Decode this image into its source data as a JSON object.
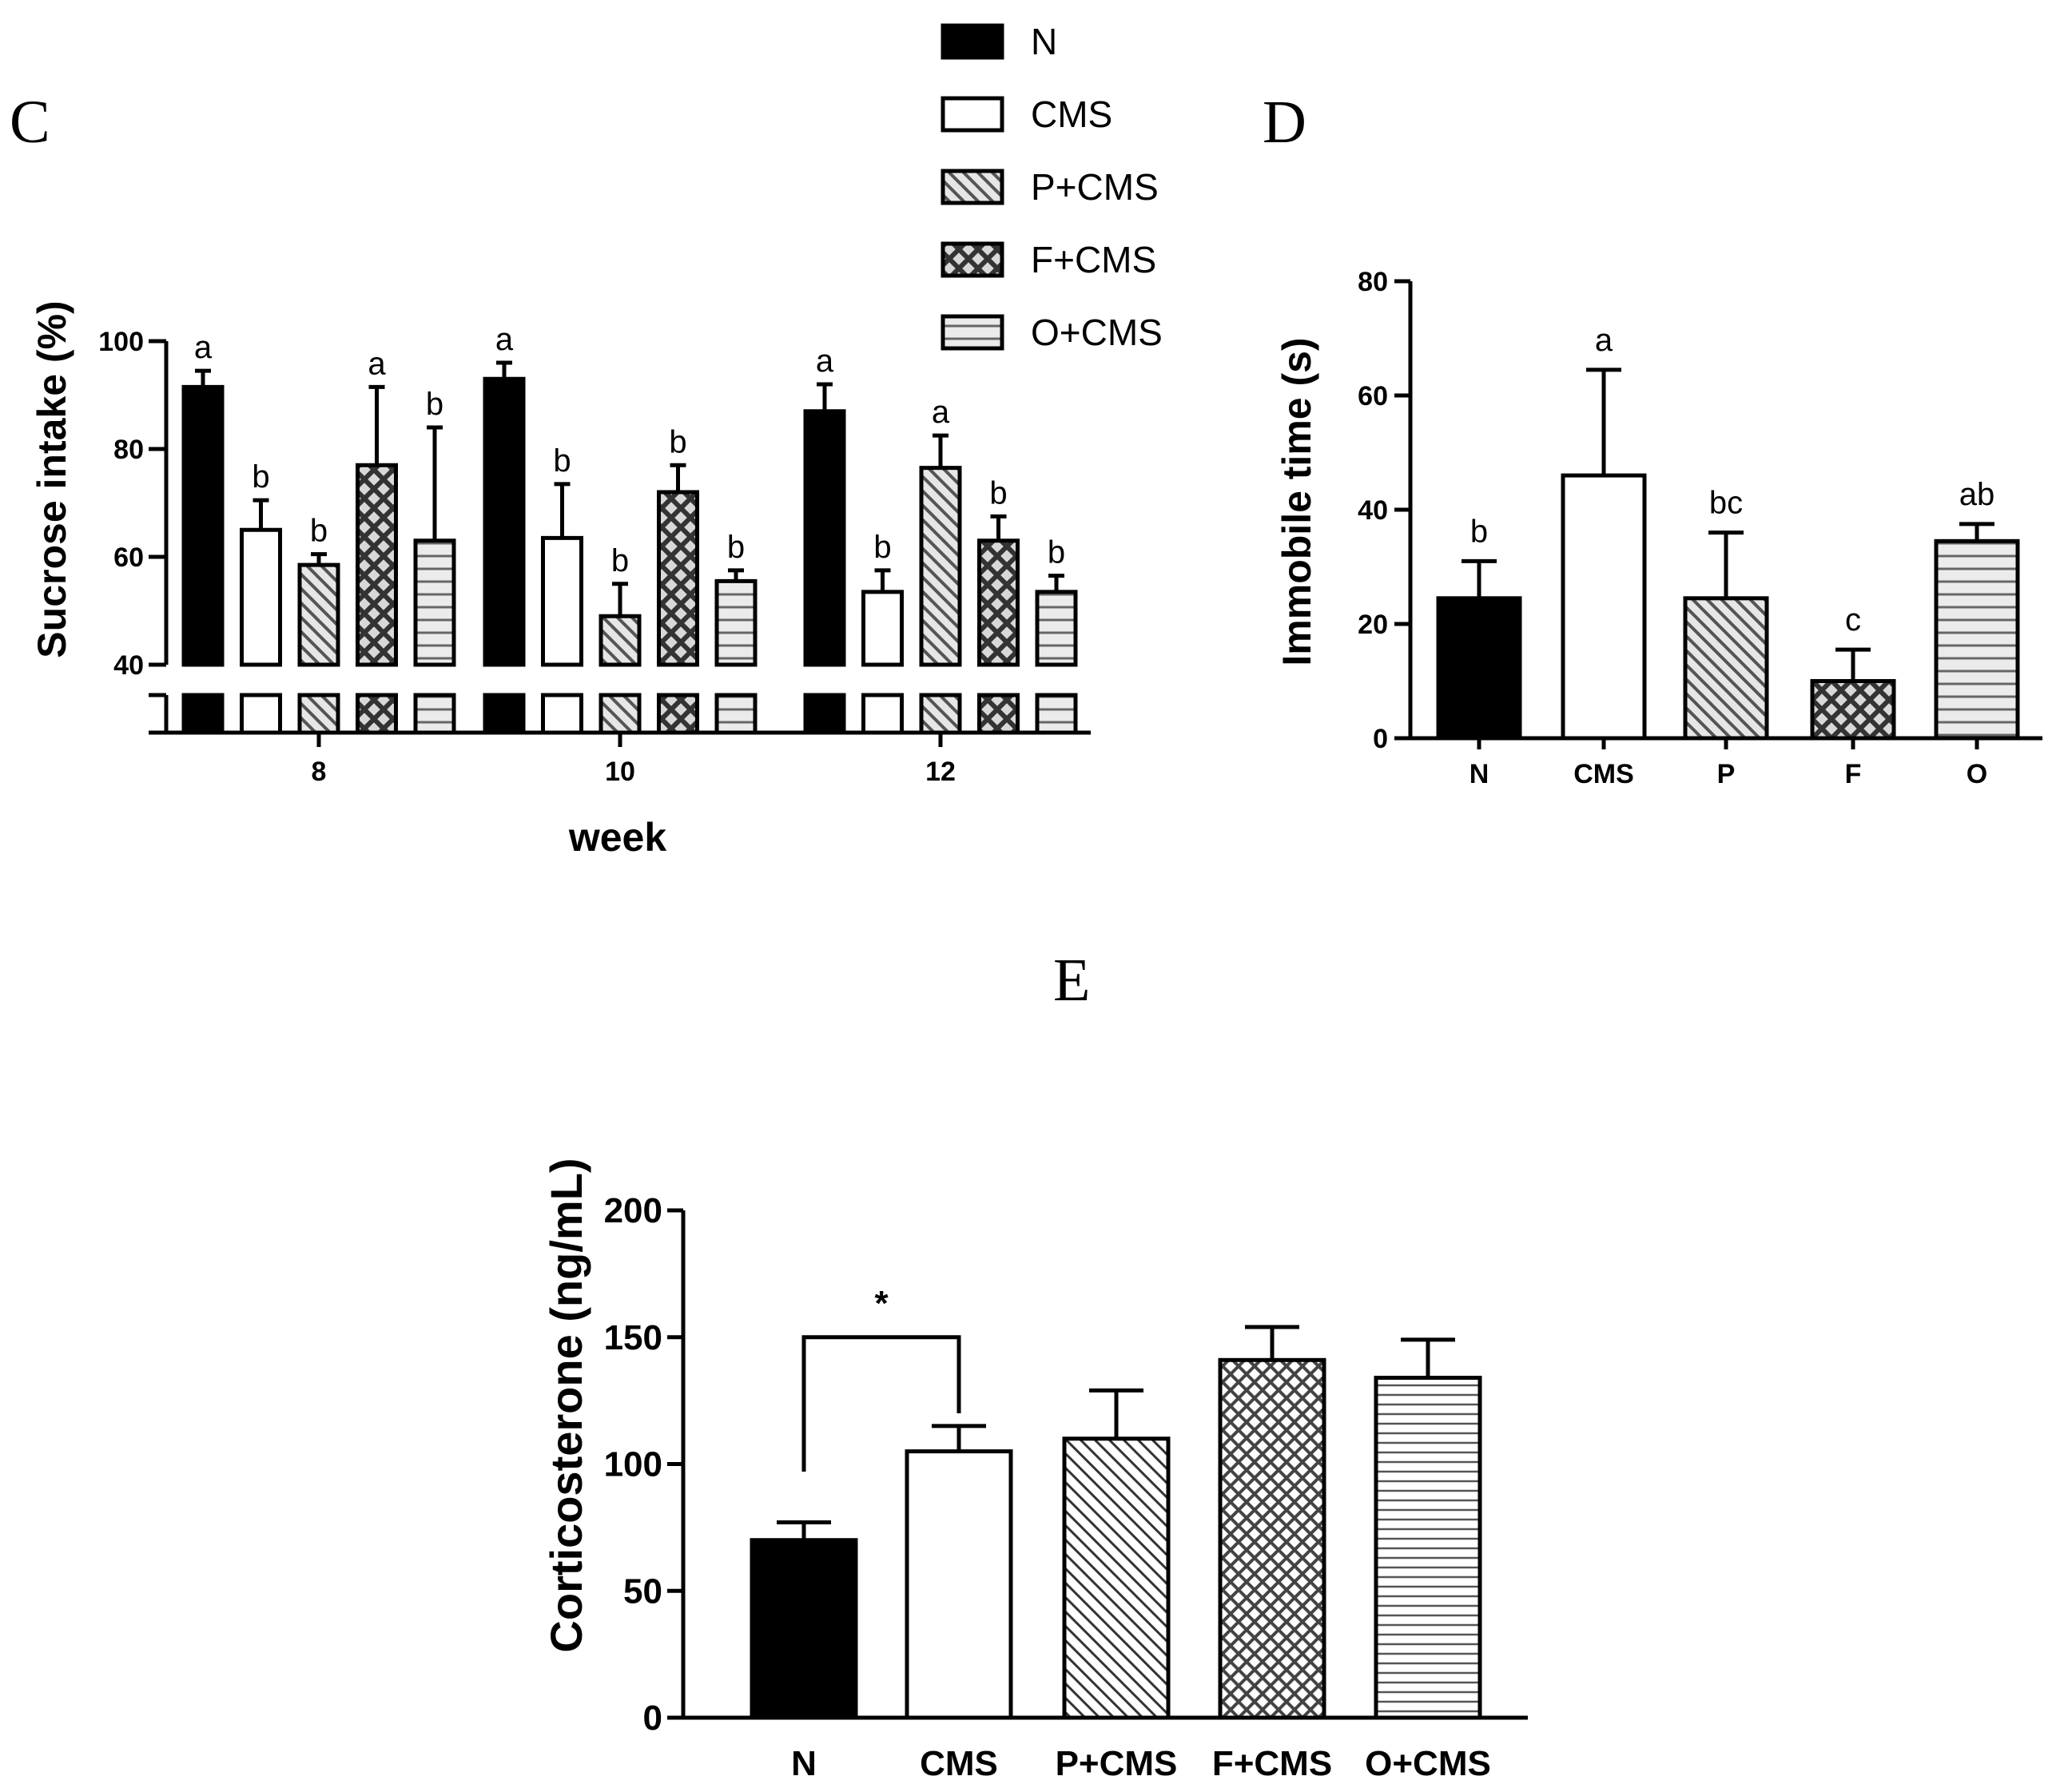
{
  "figure": {
    "legend": [
      {
        "key": "N",
        "label": "N",
        "pattern": "solid"
      },
      {
        "key": "CMS",
        "label": "CMS",
        "pattern": "white"
      },
      {
        "key": "P",
        "label": "P+CMS",
        "pattern": "diag"
      },
      {
        "key": "F",
        "label": "F+CMS",
        "pattern": "cross"
      },
      {
        "key": "O",
        "label": "O+CMS",
        "pattern": "horiz"
      }
    ]
  },
  "chart_data": [
    {
      "panel": "C",
      "type": "bar",
      "xlabel": "week",
      "ylabel": "Sucrose intake (%)",
      "ylim": [
        40,
        100
      ],
      "yticks": [
        "40",
        "60",
        "80",
        "100"
      ],
      "axis_break": true,
      "categories": [
        "8",
        "10",
        "12"
      ],
      "series": [
        {
          "name": "N",
          "pattern": "solid",
          "values": [
            91.5,
            93,
            87
          ],
          "errors": [
            3,
            3,
            5
          ],
          "letters": [
            "a",
            "a",
            "a"
          ]
        },
        {
          "name": "CMS",
          "pattern": "white",
          "values": [
            65,
            63.5,
            53.5
          ],
          "errors": [
            5.5,
            10,
            4
          ],
          "letters": [
            "b",
            "b",
            "b"
          ]
        },
        {
          "name": "P+CMS",
          "pattern": "diag",
          "values": [
            58.5,
            49,
            76.5
          ],
          "errors": [
            2,
            6,
            6
          ],
          "letters": [
            "b",
            "b",
            "a"
          ]
        },
        {
          "name": "F+CMS",
          "pattern": "cross",
          "values": [
            77,
            72,
            63
          ],
          "errors": [
            14.5,
            5,
            4.5
          ],
          "letters": [
            "a",
            "b",
            "b"
          ]
        },
        {
          "name": "O+CMS",
          "pattern": "horiz",
          "values": [
            63,
            55.5,
            53.5
          ],
          "errors": [
            21,
            2,
            3
          ],
          "letters": [
            "b",
            "b",
            "b"
          ]
        }
      ]
    },
    {
      "panel": "D",
      "type": "bar",
      "xlabel": "",
      "ylabel": "Immobile time (s)",
      "ylim": [
        0,
        80
      ],
      "yticks": [
        "0",
        "20",
        "40",
        "60",
        "80"
      ],
      "categories": [
        "N",
        "CMS",
        "P",
        "F",
        "O"
      ],
      "patterns": [
        "solid",
        "white",
        "diag",
        "cross",
        "horiz"
      ],
      "values": [
        24.5,
        46,
        24.5,
        10,
        34.5
      ],
      "errors": [
        6.5,
        18.5,
        11.5,
        5.5,
        3
      ],
      "letters": [
        "b",
        "a",
        "bc",
        "c",
        "ab"
      ]
    },
    {
      "panel": "E",
      "type": "bar",
      "xlabel": "",
      "ylabel": "Corticosterone (ng/mL)",
      "ylim": [
        0,
        200
      ],
      "yticks": [
        "0",
        "50",
        "100",
        "150",
        "200"
      ],
      "categories": [
        "N",
        "CMS",
        "P+CMS",
        "F+CMS",
        "O+CMS"
      ],
      "patterns": [
        "solid",
        "white",
        "diag",
        "cross",
        "horiz"
      ],
      "values": [
        70,
        105,
        110,
        141,
        134
      ],
      "errors": [
        7,
        10,
        19,
        13,
        15
      ],
      "significance": {
        "from": 0,
        "to": 1,
        "label": "*"
      }
    }
  ]
}
